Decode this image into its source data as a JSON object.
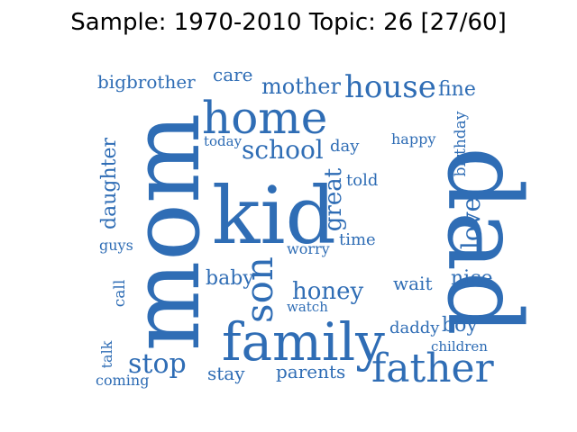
{
  "title": "Sample: 1970-2010 Topic: 26 [27/60]",
  "word_color": "#2f6db5",
  "words": [
    "mom",
    "dad",
    "kid",
    "home",
    "family",
    "father",
    "house",
    "school",
    "son",
    "mother",
    "fine",
    "bigbrother",
    "care",
    "birthday",
    "happy",
    "day",
    "today",
    "daughter",
    "great",
    "told",
    "love",
    "guys",
    "time",
    "worry",
    "baby",
    "honey",
    "wait",
    "nice",
    "call",
    "watch",
    "daddy",
    "boy",
    "stop",
    "talk",
    "coming",
    "stay",
    "parents",
    "children"
  ]
}
